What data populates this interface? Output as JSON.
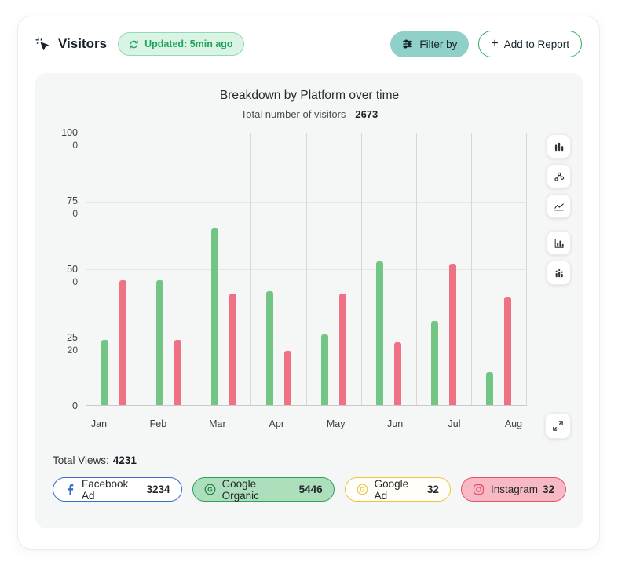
{
  "header": {
    "title": "Visitors",
    "updated_badge": "Updated: 5min ago",
    "filter_button_label": "Filter by",
    "add_report_plus": "+",
    "add_report_button_label": "Add to Report"
  },
  "chart": {
    "title": "Breakdown by Platform over time",
    "subtitle_prefix": "Total number of visitors -",
    "total_visitors": "2673",
    "chart_data": {
      "type": "bar",
      "categories": [
        "Jan",
        "Feb",
        "Mar",
        "Apr",
        "May",
        "Jun",
        "Jul",
        "Aug"
      ],
      "series": [
        {
          "name": "green",
          "color": "#72c585",
          "values": [
            24,
            46,
            65,
            42,
            26,
            53,
            31,
            12
          ]
        },
        {
          "name": "red",
          "color": "#ef7183",
          "values": [
            46,
            24,
            41,
            20,
            41,
            23,
            52,
            40
          ]
        }
      ],
      "ylim": [
        0,
        100
      ],
      "y_ticks": [
        {
          "v": 100,
          "label": "100",
          "sub": "0"
        },
        {
          "v": 75,
          "label": "75",
          "sub": "0"
        },
        {
          "v": 50,
          "label": "50",
          "sub": "0"
        },
        {
          "v": 25,
          "label": "25",
          "sub": "20"
        },
        {
          "v": 0,
          "label": "0",
          "sub": ""
        }
      ],
      "grid": true,
      "legend_position": "bottom"
    }
  },
  "toolbar": {
    "icons": [
      "bar-chart-icon",
      "scatter-chart-icon",
      "line-chart-icon",
      "column-chart-icon",
      "stacked-chart-icon"
    ],
    "expand_icon": "expand-icon"
  },
  "footer": {
    "total_views_label": "Total Views:",
    "total_views_value": "4231",
    "legend": [
      {
        "id": "facebook-ad",
        "label": "Facebook Ad",
        "value": "3234",
        "icon": "facebook-icon",
        "bg": "#ffffff",
        "border": "#3b6cc7"
      },
      {
        "id": "google-organic",
        "label": "Google Organic",
        "value": "5446",
        "icon": "google-organic-icon",
        "bg": "#addfbd",
        "border": "#2f9e5f"
      },
      {
        "id": "google-ad",
        "label": "Google Ad",
        "value": "32",
        "icon": "google-ad-icon",
        "bg": "#fffef8",
        "border": "#eec343"
      },
      {
        "id": "instagram",
        "label": "Instagram",
        "value": "32",
        "icon": "instagram-icon",
        "bg": "#f7bac5",
        "border": "#e4516b"
      }
    ]
  },
  "colors": {
    "bar_green": "#72c585",
    "bar_red": "#ef7183",
    "badge_green": "#1ea45c",
    "filter_teal": "#8fd0c9",
    "accent_green": "#2eaf66"
  }
}
